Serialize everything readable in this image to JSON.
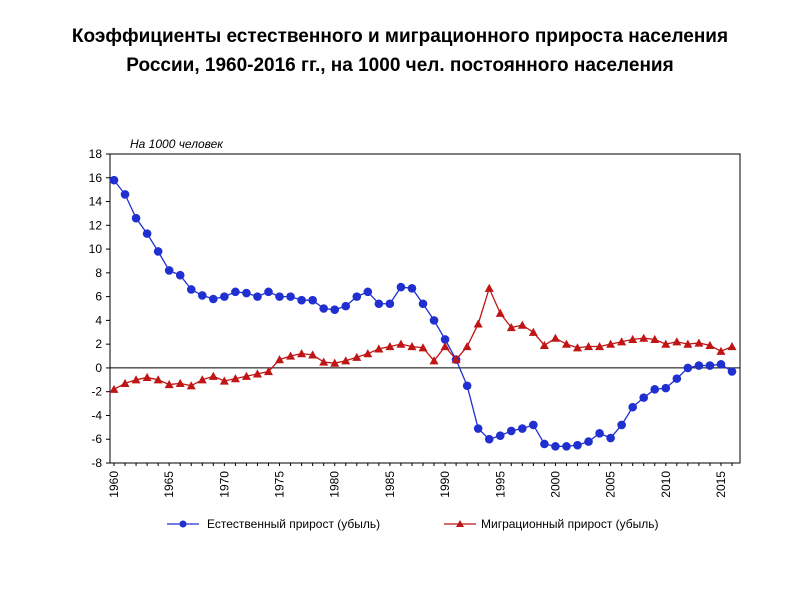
{
  "title": {
    "line1": "Коэффициенты  естественного и миграционного прироста населения",
    "line2": "России, 1960-2016 гг., на 1000 чел. постоянного населения"
  },
  "chart_data": {
    "type": "line",
    "title": "Коэффициенты естественного и миграционного прироста населения России, 1960-2016 гг., на 1000 чел. постоянного населения",
    "ylabel": "На 1000 человек",
    "xlabel": "",
    "xlim": [
      1960,
      2016
    ],
    "ylim": [
      -8,
      18
    ],
    "grid": false,
    "legend_position": "bottom",
    "x_ticks": [
      1960,
      1965,
      1970,
      1975,
      1980,
      1985,
      1990,
      1995,
      2000,
      2005,
      2010,
      2015
    ],
    "y_ticks": [
      -8,
      -6,
      -4,
      -2,
      0,
      2,
      4,
      6,
      8,
      10,
      12,
      14,
      16,
      18
    ],
    "x": [
      1960,
      1961,
      1962,
      1963,
      1964,
      1965,
      1966,
      1967,
      1968,
      1969,
      1970,
      1971,
      1972,
      1973,
      1974,
      1975,
      1976,
      1977,
      1978,
      1979,
      1980,
      1981,
      1982,
      1983,
      1984,
      1985,
      1986,
      1987,
      1988,
      1989,
      1990,
      1991,
      1992,
      1993,
      1994,
      1995,
      1996,
      1997,
      1998,
      1999,
      2000,
      2001,
      2002,
      2003,
      2004,
      2005,
      2006,
      2007,
      2008,
      2009,
      2010,
      2011,
      2012,
      2013,
      2014,
      2015,
      2016
    ],
    "series": [
      {
        "name": "Естественный прирост (убыль)",
        "color": "#1f2fd0",
        "marker": "circle",
        "values": [
          15.8,
          14.6,
          12.6,
          11.3,
          9.8,
          8.2,
          7.8,
          6.6,
          6.1,
          5.8,
          6.0,
          6.4,
          6.3,
          6.0,
          6.4,
          6.0,
          6.0,
          5.7,
          5.7,
          5.0,
          4.9,
          5.2,
          6.0,
          6.4,
          5.4,
          5.4,
          6.8,
          6.7,
          5.4,
          4.0,
          2.4,
          0.7,
          -1.5,
          -5.1,
          -6.0,
          -5.7,
          -5.3,
          -5.1,
          -4.8,
          -6.4,
          -6.6,
          -6.6,
          -6.5,
          -6.2,
          -5.5,
          -5.9,
          -4.8,
          -3.3,
          -2.5,
          -1.8,
          -1.7,
          -0.9,
          0.0,
          0.2,
          0.2,
          0.3,
          -0.3
        ]
      },
      {
        "name": "Миграционный  прирост (убыль)",
        "color": "#c01515",
        "marker": "triangle",
        "values": [
          -1.8,
          -1.3,
          -1.0,
          -0.8,
          -1.0,
          -1.4,
          -1.3,
          -1.5,
          -1.0,
          -0.7,
          -1.1,
          -0.9,
          -0.7,
          -0.5,
          -0.3,
          0.7,
          1.0,
          1.2,
          1.1,
          0.5,
          0.4,
          0.6,
          0.9,
          1.2,
          1.6,
          1.8,
          2.0,
          1.8,
          1.7,
          0.6,
          1.8,
          0.7,
          1.8,
          3.7,
          6.7,
          4.6,
          3.4,
          3.6,
          3.0,
          1.9,
          2.5,
          2.0,
          1.7,
          1.8,
          1.8,
          2.0,
          2.2,
          2.4,
          2.5,
          2.4,
          2.0,
          2.2,
          2.0,
          2.1,
          1.9,
          1.4,
          1.8
        ]
      }
    ]
  }
}
